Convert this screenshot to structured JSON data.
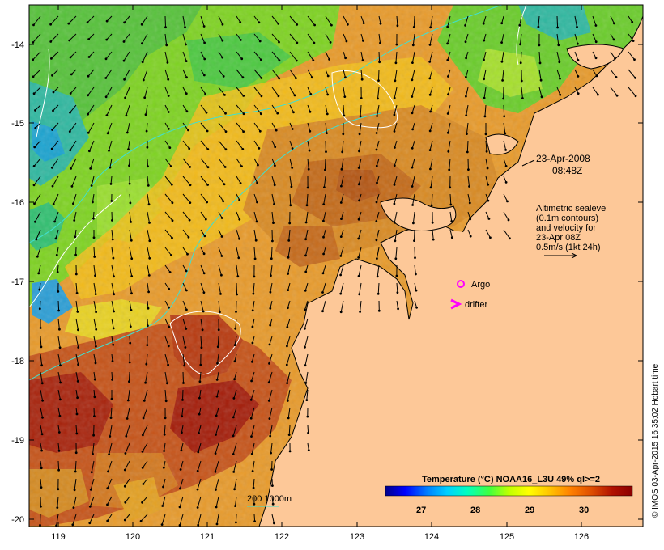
{
  "map": {
    "date": "23-Apr-2008",
    "time": "08:48Z",
    "velocity_legend": [
      "Altimetric sealevel",
      "(0.1m contours)",
      "and velocity for",
      "23-Apr 08Z",
      "0.5m/s (1kt 24h)"
    ],
    "argo_label": "Argo",
    "drifter_label": "drifter",
    "depth_label": "200 1000m",
    "colorbar": {
      "title": "Temperature (°C) NOAA16_L3U 49% ql>=2",
      "ticks": [
        "27",
        "28",
        "29",
        "30"
      ],
      "colors": [
        "#00008b",
        "#0000ff",
        "#0080ff",
        "#00d0ff",
        "#00ffc0",
        "#40ff40",
        "#c0ff00",
        "#ffff00",
        "#ffc000",
        "#ff8000",
        "#e05000",
        "#b01000",
        "#8b0000"
      ]
    },
    "lon_ticks": [
      "119",
      "120",
      "121",
      "122",
      "123",
      "124",
      "125",
      "126"
    ],
    "lat_ticks": [
      "-14",
      "-15",
      "-16",
      "-17",
      "-18",
      "-19",
      "-20"
    ],
    "copyright": "© IMOS 03-Apr-2015 16:35:02 Hobart time",
    "colors": {
      "land": "#fdc898",
      "coast": "#000000",
      "contour": "#ffffff",
      "isobath": "#40e0d0",
      "marker": "#ff00ff"
    }
  }
}
